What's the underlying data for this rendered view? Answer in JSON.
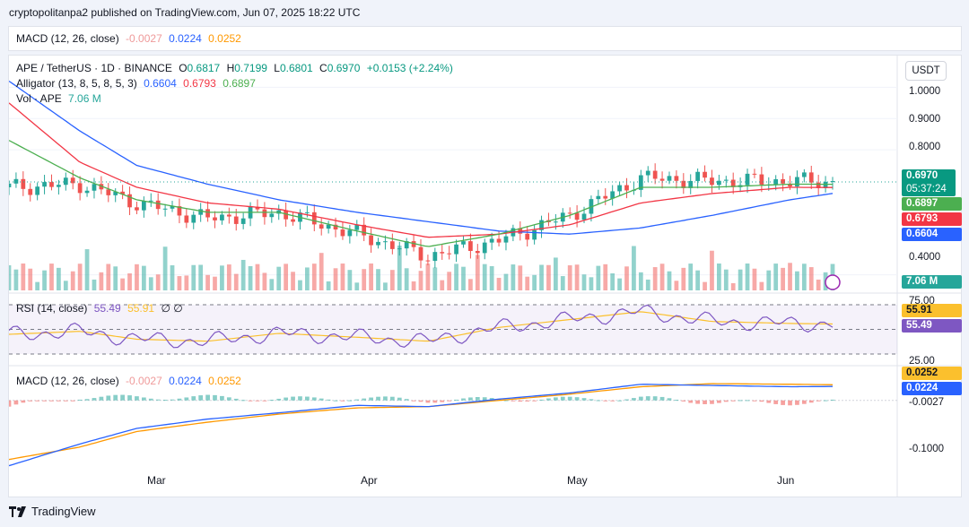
{
  "header": {
    "published": "cryptopolitanpa2 published on TradingView.com, Jun 07, 2025 18:22 UTC"
  },
  "top_indicator": {
    "name": "MACD (12, 26, close)",
    "v1": "-0.0027",
    "v2": "0.0224",
    "v3": "0.0252"
  },
  "legend": {
    "symbol": "APE / TetherUS · 1D · BINANCE",
    "o_label": "O",
    "o": "0.6817",
    "h_label": "H",
    "h": "0.7199",
    "l_label": "L",
    "l": "0.6801",
    "c_label": "C",
    "c": "0.6970",
    "change": "+0.0153 (+2.24%)",
    "alligator_name": "Alligator (13, 8, 5, 8, 5, 3)",
    "jaw": "0.6604",
    "teeth": "0.6793",
    "lips": "0.6897",
    "vol_name": "Vol · APE",
    "vol": "7.06 M"
  },
  "rsi_legend": {
    "name": "RSI (14, close)",
    "v1": "55.49",
    "v2": "55.91",
    "v3": "∅ ∅"
  },
  "macd_legend": {
    "name": "MACD (12, 26, close)",
    "v1": "-0.0027",
    "v2": "0.0224",
    "v3": "0.0252"
  },
  "currency": "USDT",
  "price_axis": [
    "1.0000",
    "0.9000",
    "0.8000",
    "0.4000"
  ],
  "price_tags": {
    "last": "0.6970",
    "countdown": "05:37:24",
    "lips": "0.6897",
    "teeth": "0.6793",
    "jaw": "0.6604",
    "vol": "7.06 M"
  },
  "rsi_axis": [
    "75.00",
    "25.00"
  ],
  "rsi_tags": {
    "ma": "55.91",
    "rsi": "55.49"
  },
  "macd_axis": [
    "-0.1000"
  ],
  "macd_tags": {
    "signal": "0.0252",
    "macd": "0.0224",
    "hist": "-0.0027"
  },
  "x_axis": [
    "Mar",
    "Apr",
    "May",
    "Jun"
  ],
  "footer": {
    "brand": "TradingView"
  },
  "colors": {
    "up": "#26a69a",
    "down": "#ef5350",
    "jaw": "#2962ff",
    "teeth": "#f23645",
    "lips": "#4caf50",
    "rsi": "#7e57c2",
    "rsi_ma": "#fbc02d",
    "macd": "#2962ff",
    "signal": "#ff9800"
  },
  "chart_data": {
    "type": "line",
    "title": "APE / TetherUS · 1D · BINANCE",
    "x": [
      "2025-02-11",
      "2025-02-21",
      "2025-03-01",
      "2025-03-11",
      "2025-03-21",
      "2025-04-01",
      "2025-04-11",
      "2025-04-21",
      "2025-05-01",
      "2025-05-11",
      "2025-05-21",
      "2025-06-01",
      "2025-06-07"
    ],
    "series": [
      {
        "name": "Close",
        "values": [
          0.68,
          0.69,
          0.63,
          0.58,
          0.6,
          0.53,
          0.46,
          0.51,
          0.59,
          0.71,
          0.7,
          0.7,
          0.697
        ]
      },
      {
        "name": "Alligator Jaw",
        "values": [
          1.02,
          0.86,
          0.75,
          0.69,
          0.64,
          0.6,
          0.57,
          0.54,
          0.53,
          0.55,
          0.59,
          0.64,
          0.6604
        ]
      },
      {
        "name": "Alligator Teeth",
        "values": [
          0.95,
          0.76,
          0.68,
          0.63,
          0.61,
          0.56,
          0.52,
          0.53,
          0.56,
          0.63,
          0.66,
          0.68,
          0.6793
        ]
      },
      {
        "name": "Alligator Lips",
        "values": [
          0.83,
          0.71,
          0.64,
          0.6,
          0.6,
          0.54,
          0.49,
          0.53,
          0.59,
          0.68,
          0.68,
          0.69,
          0.6897
        ]
      },
      {
        "name": "RSI",
        "values": [
          45,
          48,
          40,
          38,
          46,
          42,
          38,
          52,
          60,
          68,
          58,
          56,
          55.49
        ]
      },
      {
        "name": "MACD",
        "values": [
          -0.105,
          -0.07,
          -0.045,
          -0.03,
          -0.02,
          -0.008,
          -0.01,
          0.002,
          0.012,
          0.026,
          0.024,
          0.022,
          0.0224
        ]
      },
      {
        "name": "Signal",
        "values": [
          -0.095,
          -0.075,
          -0.05,
          -0.035,
          -0.022,
          -0.012,
          -0.01,
          0.0,
          0.01,
          0.022,
          0.027,
          0.026,
          0.0252
        ]
      }
    ],
    "ylim_price": [
      0.35,
      1.05
    ],
    "ylim_rsi": [
      25,
      75
    ],
    "ylim_macd": [
      -0.12,
      0.04
    ]
  }
}
